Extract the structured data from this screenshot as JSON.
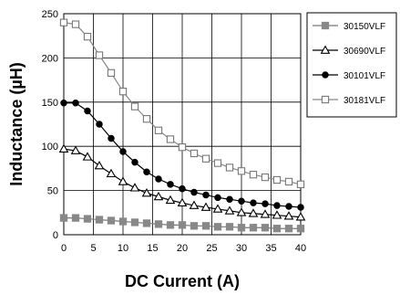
{
  "chart_data": {
    "type": "line",
    "title": "",
    "xlabel": "DC Current (A)",
    "ylabel": "Inductance (µH)",
    "xlim": [
      0,
      40
    ],
    "ylim": [
      0,
      250
    ],
    "x_ticks": [
      "0",
      "5",
      "10",
      "15",
      "20",
      "25",
      "30",
      "35",
      "40"
    ],
    "y_ticks": [
      "0",
      "50",
      "100",
      "150",
      "200",
      "250"
    ],
    "grid": true,
    "legend_position": "right",
    "x": [
      0,
      2,
      4,
      6,
      8,
      10,
      12,
      14,
      16,
      18,
      20,
      22,
      24,
      26,
      28,
      30,
      32,
      34,
      36,
      38,
      40
    ],
    "series": [
      {
        "name": "30150VLF",
        "marker": "square-filled",
        "line_color": "#777777",
        "marker_fill": "#888888",
        "marker_stroke": "#888888",
        "values": [
          19,
          19,
          18,
          17,
          16,
          15,
          14,
          13,
          12,
          11,
          11,
          10,
          10,
          9,
          9,
          8,
          8,
          8,
          7,
          7,
          7
        ]
      },
      {
        "name": "30690VLF",
        "marker": "triangle-open",
        "line_color": "#000000",
        "marker_fill": "#ffffff",
        "marker_stroke": "#000000",
        "values": [
          97,
          95,
          88,
          78,
          69,
          60,
          53,
          47,
          43,
          39,
          36,
          33,
          31,
          29,
          27,
          25,
          24,
          23,
          22,
          21,
          20
        ]
      },
      {
        "name": "30101VLF",
        "marker": "circle-filled",
        "line_color": "#000000",
        "marker_fill": "#000000",
        "marker_stroke": "#000000",
        "values": [
          149,
          149,
          140,
          125,
          109,
          94,
          82,
          71,
          63,
          57,
          52,
          48,
          45,
          42,
          40,
          38,
          36,
          35,
          33,
          32,
          31
        ]
      },
      {
        "name": "30181VLF",
        "marker": "square-open",
        "line_color": "#888888",
        "marker_fill": "#ffffff",
        "marker_stroke": "#777777",
        "values": [
          240,
          238,
          224,
          203,
          183,
          162,
          145,
          131,
          118,
          108,
          99,
          92,
          86,
          81,
          76,
          72,
          68,
          65,
          62,
          60,
          57
        ]
      }
    ]
  }
}
